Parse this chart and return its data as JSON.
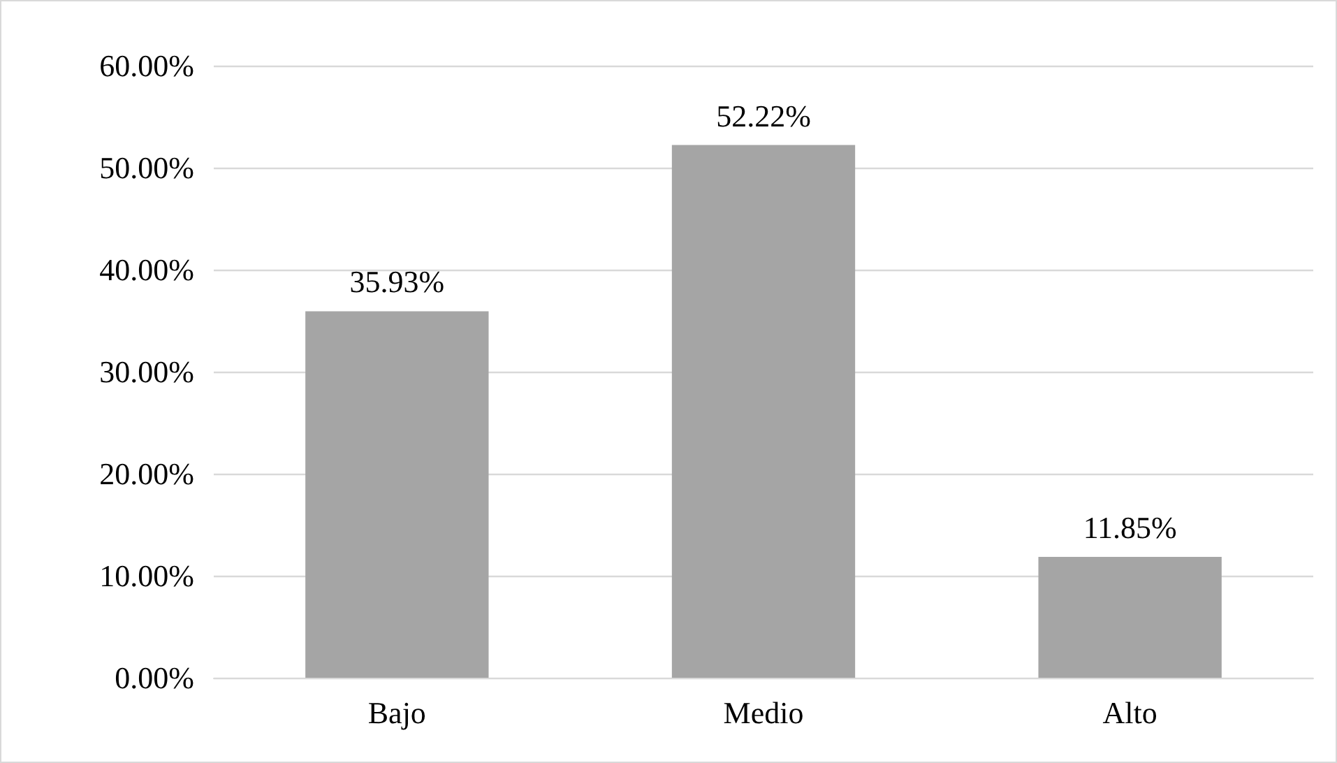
{
  "chart_data": {
    "type": "bar",
    "categories": [
      "Bajo",
      "Medio",
      "Alto"
    ],
    "values": [
      35.93,
      52.22,
      11.85
    ],
    "color": "#a5a5a5",
    "value_labels": [
      "35.93%",
      "52.22%",
      "11.85%"
    ],
    "ylim": [
      0,
      60
    ],
    "yticks": [
      {
        "value": 0,
        "label": "0.00%"
      },
      {
        "value": 10,
        "label": "10.00%"
      },
      {
        "value": 20,
        "label": "20.00%"
      },
      {
        "value": 30,
        "label": "30.00%"
      },
      {
        "value": 40,
        "label": "40.00%"
      },
      {
        "value": 50,
        "label": "50.00%"
      },
      {
        "value": 60,
        "label": "60.00%"
      }
    ],
    "grid": "y"
  }
}
